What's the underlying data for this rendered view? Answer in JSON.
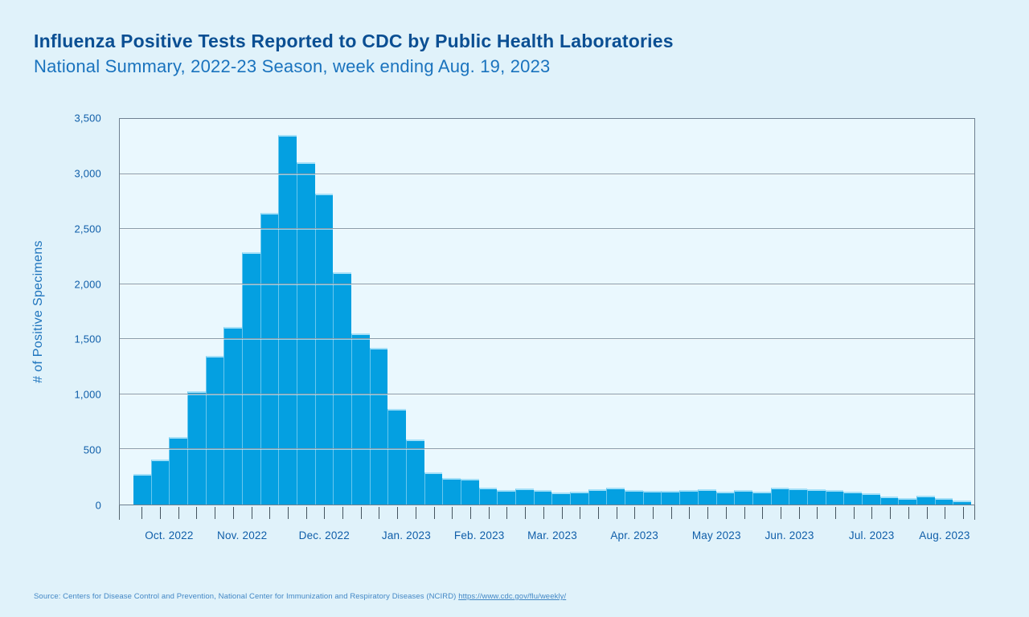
{
  "page": {
    "title": "Influenza Positive Tests Reported to CDC by Public Health Laboratories",
    "subtitle": "National Summary, 2022-23 Season, week ending Aug. 19, 2023",
    "source_prefix": "Source: Centers for Disease Control and Prevention, National Center for Immunization and Respiratory Diseases (NCIRD) ",
    "source_link": "https://www.cdc.gov/flu/weekly/"
  },
  "chart_data": {
    "type": "bar",
    "title": "Influenza Positive Tests Reported to CDC by Public Health Laboratories",
    "subtitle": "National Summary, 2022-23 Season, week ending Aug. 19, 2023",
    "xlabel": "",
    "ylabel": "# of Positive Specimens",
    "ylim": [
      0,
      3500
    ],
    "ytick_step": 500,
    "ytick_labels": [
      "0",
      "500",
      "1,000",
      "1,500",
      "2,000",
      "2,500",
      "3,000",
      "3,500"
    ],
    "grid": true,
    "legend": false,
    "bar_color": "#04a0e1",
    "bar_cap_color": "#a5e0f8",
    "background_color": "#e0f2fa",
    "plot_background_color": "#eaf8fe",
    "x_unit": "week",
    "months": [
      {
        "label": "Oct. 2022",
        "weeks": 4
      },
      {
        "label": "Nov. 2022",
        "weeks": 4
      },
      {
        "label": "Dec. 2022",
        "weeks": 5
      },
      {
        "label": "Jan. 2023",
        "weeks": 4
      },
      {
        "label": "Feb. 2023",
        "weeks": 4
      },
      {
        "label": "Mar. 2023",
        "weeks": 4
      },
      {
        "label": "Apr. 2023",
        "weeks": 5
      },
      {
        "label": "May 2023",
        "weeks": 4
      },
      {
        "label": "Jun. 2023",
        "weeks": 4
      },
      {
        "label": "Jul. 2023",
        "weeks": 5
      },
      {
        "label": "Aug. 2023",
        "weeks": 3
      }
    ],
    "values": [
      280,
      405,
      615,
      1025,
      1350,
      1615,
      2290,
      2650,
      3355,
      3105,
      2825,
      2105,
      1555,
      1425,
      865,
      590,
      290,
      240,
      230,
      155,
      130,
      145,
      130,
      110,
      120,
      140,
      150,
      130,
      125,
      125,
      135,
      140,
      120,
      130,
      115,
      150,
      148,
      138,
      130,
      120,
      100,
      75,
      60,
      80,
      58,
      40
    ]
  },
  "colors": {
    "title": "#0b4f93",
    "subtitle": "#1a73be",
    "axis_labels": "#0f5ea9",
    "gridline": "#8b9ba8",
    "source_text": "#4287c5"
  }
}
